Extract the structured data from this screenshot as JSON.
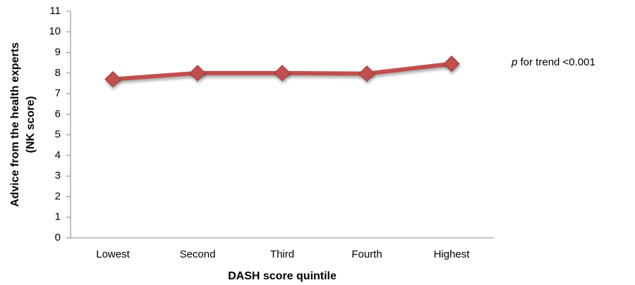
{
  "chart_data": {
    "type": "line",
    "y_label": [
      "Advice from the health experts",
      "(NK score)"
    ],
    "x_label": "DASH score quintile",
    "annotation": {
      "italic": "p",
      "text": " for trend <0.001"
    },
    "categories": [
      "Lowest",
      "Second",
      "Third",
      "Fourth",
      "Highest"
    ],
    "series": [
      {
        "color": "#c0504d",
        "values": [
          7.7,
          8.0,
          8.0,
          7.97,
          8.45
        ]
      }
    ],
    "ylim": [
      0,
      11
    ],
    "yticks": [
      0,
      1,
      2,
      3,
      4,
      5,
      6,
      7,
      8,
      9,
      10,
      11
    ],
    "grid": false
  }
}
